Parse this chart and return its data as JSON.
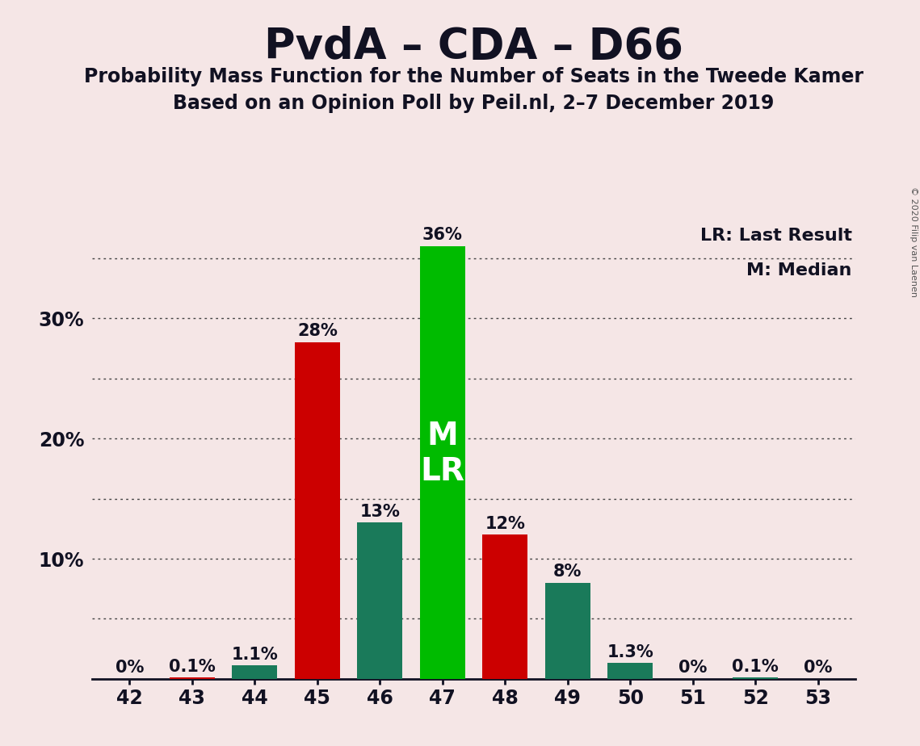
{
  "title": "PvdA – CDA – D66",
  "subtitle1": "Probability Mass Function for the Number of Seats in the Tweede Kamer",
  "subtitle2": "Based on an Opinion Poll by Peil.nl, 2–7 December 2019",
  "copyright": "© 2020 Filip van Laenen",
  "seats": [
    42,
    43,
    44,
    45,
    46,
    47,
    48,
    49,
    50,
    51,
    52,
    53
  ],
  "values": [
    0.0,
    0.1,
    1.1,
    28.0,
    13.0,
    36.0,
    12.0,
    8.0,
    1.3,
    0.0,
    0.1,
    0.0
  ],
  "labels": [
    "0%",
    "0.1%",
    "1.1%",
    "28%",
    "13%",
    "36%",
    "12%",
    "8%",
    "1.3%",
    "0%",
    "0.1%",
    "0%"
  ],
  "bar_colors": [
    "#cc0000",
    "#cc0000",
    "#1a7a5a",
    "#cc0000",
    "#1a7a5a",
    "#00bb00",
    "#cc0000",
    "#1a7a5a",
    "#1a7a5a",
    "#cc0000",
    "#1a7a5a",
    "#cc0000"
  ],
  "median_seat": 47,
  "lr_seat": 47,
  "background_color": "#f5e6e6",
  "title_fontsize": 38,
  "subtitle_fontsize": 17,
  "label_fontsize": 15,
  "tick_fontsize": 17,
  "ylim": [
    0,
    38.5
  ],
  "ytick_values": [
    5,
    10,
    15,
    20,
    25,
    30,
    35
  ],
  "ytick_major": [
    10,
    20,
    30
  ],
  "legend_lr": "LR: Last Result",
  "legend_m": "M: Median"
}
